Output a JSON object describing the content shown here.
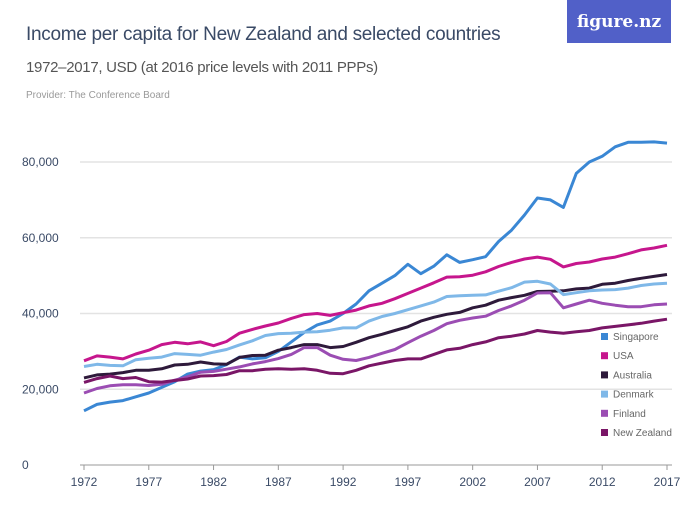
{
  "logo": "figure.nz",
  "colors": {
    "logo_bg": "#5160c8"
  },
  "chart_data": {
    "type": "line",
    "title": "Income per capita for New Zealand and selected countries",
    "subtitle": "1972–2017, USD (at 2016 price levels with 2011 PPPs)",
    "provider": "Provider: The Conference Board",
    "x_start": 1972,
    "x_end": 2017,
    "xticks": [
      1972,
      1977,
      1982,
      1987,
      1992,
      1997,
      2002,
      2007,
      2012,
      2017
    ],
    "yticks": [
      0,
      20000,
      40000,
      60000,
      80000
    ],
    "ytick_labels": [
      "0",
      "20,000",
      "40,000",
      "60,000",
      "80,000"
    ],
    "ylim": [
      0,
      80000
    ],
    "grid": "horizontal",
    "legend_position": "bottom-right",
    "series": [
      {
        "name": "Singapore",
        "color": "#3a87d4",
        "values": [
          14300,
          16000,
          16600,
          17000,
          18000,
          19000,
          20500,
          22000,
          24000,
          24800,
          25200,
          26500,
          28500,
          28000,
          28300,
          30000,
          32500,
          35000,
          37000,
          38000,
          40000,
          42500,
          46000,
          48000,
          50000,
          53000,
          50500,
          52500,
          55500,
          53500,
          54200,
          55000,
          59000,
          62000,
          66000,
          70500,
          70000,
          68000,
          77000,
          80000,
          81500,
          84000,
          85200,
          85200,
          85300,
          85000
        ]
      },
      {
        "name": "USA",
        "color": "#c6168d",
        "values": [
          27500,
          28800,
          28500,
          28000,
          29300,
          30300,
          31800,
          32400,
          32000,
          32500,
          31500,
          32600,
          34800,
          35800,
          36700,
          37500,
          38700,
          39700,
          40000,
          39500,
          40200,
          40900,
          42000,
          42700,
          43900,
          45300,
          46700,
          48100,
          49600,
          49700,
          50100,
          51000,
          52400,
          53500,
          54400,
          54900,
          54300,
          52300,
          53200,
          53600,
          54400,
          54900,
          55800,
          56800,
          57300,
          58000
        ]
      },
      {
        "name": "Australia",
        "color": "#2e1a3b",
        "values": [
          23000,
          23800,
          24000,
          24400,
          25000,
          25000,
          25400,
          26400,
          26600,
          27200,
          26700,
          26600,
          28400,
          28900,
          29000,
          30300,
          31000,
          31800,
          31800,
          31000,
          31300,
          32400,
          33600,
          34500,
          35500,
          36500,
          38000,
          39000,
          39800,
          40300,
          41500,
          42200,
          43500,
          44200,
          44800,
          45800,
          45900,
          46000,
          46500,
          46700,
          47700,
          48000,
          48700,
          49300,
          49800,
          50300
        ]
      },
      {
        "name": "Denmark",
        "color": "#7fb8e8",
        "values": [
          26000,
          26600,
          26300,
          26200,
          27800,
          28200,
          28500,
          29400,
          29200,
          29000,
          29800,
          30500,
          31700,
          32800,
          34200,
          34700,
          34800,
          35100,
          35200,
          35600,
          36200,
          36200,
          38000,
          39200,
          40000,
          41000,
          42000,
          43000,
          44500,
          44700,
          44800,
          44900,
          45900,
          46800,
          48300,
          48500,
          47800,
          45000,
          45500,
          46000,
          46200,
          46300,
          46700,
          47400,
          47800,
          48000
        ]
      },
      {
        "name": "Finland",
        "color": "#9b4db3",
        "values": [
          19000,
          20200,
          20900,
          21200,
          21200,
          21000,
          21300,
          22400,
          23300,
          24500,
          24700,
          25300,
          25900,
          26700,
          27300,
          28100,
          29200,
          31000,
          31000,
          29000,
          27900,
          27600,
          28400,
          29500,
          30500,
          32300,
          34000,
          35500,
          37300,
          38200,
          38800,
          39300,
          40800,
          42000,
          43500,
          45400,
          45500,
          41500,
          42500,
          43500,
          42700,
          42200,
          41800,
          41800,
          42300,
          42500
        ]
      },
      {
        "name": "New Zealand",
        "color": "#7a1667",
        "values": [
          21800,
          22800,
          23500,
          22800,
          23100,
          22000,
          21900,
          22300,
          22700,
          23500,
          23600,
          23900,
          24900,
          24900,
          25300,
          25400,
          25300,
          25400,
          25000,
          24200,
          24100,
          25000,
          26200,
          26900,
          27600,
          28000,
          28000,
          29200,
          30400,
          30800,
          31800,
          32500,
          33600,
          34000,
          34600,
          35500,
          35100,
          34800,
          35200,
          35500,
          36200,
          36600,
          37000,
          37400,
          38000,
          38500
        ]
      }
    ]
  }
}
